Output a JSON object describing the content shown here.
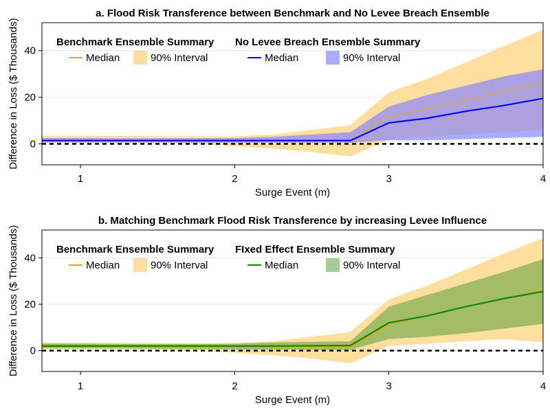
{
  "chart_data": [
    {
      "type": "line",
      "title": "a. Flood Risk Transference between Benchmark and No Levee Breach Ensemble",
      "xlabel": "Surge Event (m)",
      "ylabel": "Difference in Loss ($ Thousands)",
      "xlim": [
        0.75,
        4
      ],
      "ylim": [
        -9,
        52
      ],
      "xticks": [
        1,
        2,
        3,
        4
      ],
      "yticks": [
        0,
        20,
        40
      ],
      "grid": true,
      "reference_line_y": 0,
      "x": [
        0.75,
        1,
        1.25,
        1.5,
        1.75,
        2,
        2.25,
        2.5,
        2.75,
        3,
        3.25,
        3.5,
        3.75,
        4
      ],
      "legend": [
        {
          "title": "Benchmark Ensemble Summary",
          "median_label": "Median",
          "interval_label": "90% Interval"
        },
        {
          "title": "No Levee Breach Ensemble Summary",
          "median_label": "Median",
          "interval_label": "90% Interval"
        }
      ],
      "series": [
        {
          "line_color": "#E5A51B",
          "band_color": "#FFDFA0",
          "median": [
            1.6,
            1.6,
            1.6,
            1.6,
            1.5,
            1.4,
            1.4,
            1.5,
            1.5,
            11.5,
            15.0,
            19.0,
            22.5,
            26.0
          ],
          "lower": [
            0.5,
            0.5,
            0.5,
            0.4,
            0.0,
            -1.0,
            -2.0,
            -3.5,
            -5.5,
            2.0,
            3.0,
            4.0,
            5.0,
            6.0
          ],
          "upper": [
            3.5,
            3.5,
            3.4,
            3.3,
            3.2,
            3.2,
            4.0,
            6.0,
            8.0,
            22.0,
            28.0,
            35.0,
            42.0,
            49.0
          ]
        },
        {
          "line_color": "#0000FF",
          "band_color": "#8080FF",
          "band_opacity": 0.65,
          "median": [
            1.4,
            1.4,
            1.4,
            1.4,
            1.4,
            1.4,
            1.4,
            1.4,
            1.4,
            9.0,
            11.0,
            14.0,
            16.5,
            19.5
          ],
          "lower": [
            0.6,
            0.6,
            0.6,
            0.6,
            0.5,
            0.5,
            0.5,
            0.5,
            0.5,
            1.5,
            1.5,
            2.0,
            2.5,
            3.0
          ],
          "upper": [
            2.5,
            2.5,
            2.4,
            2.4,
            2.4,
            2.5,
            3.0,
            4.0,
            5.0,
            16.0,
            21.0,
            25.0,
            29.0,
            32.0
          ]
        }
      ]
    },
    {
      "type": "line",
      "title": "b. Matching Benchmark Flood Risk Transference by increasing Levee Influence",
      "xlabel": "Surge Event (m)",
      "ylabel": "Difference in Loss ($ Thousands)",
      "xlim": [
        0.75,
        4
      ],
      "ylim": [
        -9,
        52
      ],
      "xticks": [
        1,
        2,
        3,
        4
      ],
      "yticks": [
        0,
        20,
        40
      ],
      "grid": true,
      "reference_line_y": 0,
      "x": [
        0.75,
        1,
        1.25,
        1.5,
        1.75,
        2,
        2.25,
        2.5,
        2.75,
        3,
        3.25,
        3.5,
        3.75,
        4
      ],
      "legend": [
        {
          "title": "Benchmark Ensemble Summary",
          "median_label": "Median",
          "interval_label": "90% Interval"
        },
        {
          "title": "FIxed Effect Ensemble Summary",
          "median_label": "Median",
          "interval_label": "90% Interval"
        }
      ],
      "series": [
        {
          "line_color": "#E5A51B",
          "band_color": "#FFDFA0",
          "median": [
            1.6,
            1.6,
            1.6,
            1.6,
            1.5,
            1.4,
            1.4,
            1.5,
            1.5,
            11.5,
            15.0,
            19.0,
            22.5,
            26.0
          ],
          "lower": [
            0.5,
            0.5,
            0.5,
            0.4,
            0.0,
            -1.0,
            -2.0,
            -3.5,
            -5.5,
            2.0,
            3.0,
            4.0,
            5.0,
            3.5
          ],
          "upper": [
            3.5,
            3.5,
            3.4,
            3.3,
            3.2,
            3.2,
            4.0,
            6.0,
            8.0,
            22.0,
            28.0,
            35.0,
            42.0,
            48.5
          ]
        },
        {
          "line_color": "#0A8A0A",
          "band_color": "#4A9A2A",
          "band_opacity": 0.5,
          "median": [
            2.0,
            2.0,
            2.0,
            2.0,
            2.0,
            2.0,
            2.0,
            2.1,
            2.2,
            12.0,
            15.0,
            19.0,
            22.5,
            25.5
          ],
          "lower": [
            1.0,
            1.0,
            1.0,
            0.8,
            0.7,
            0.6,
            0.5,
            0.4,
            0.3,
            5.0,
            6.0,
            7.5,
            9.5,
            11.5
          ],
          "upper": [
            3.0,
            3.0,
            2.9,
            2.8,
            2.8,
            3.0,
            3.5,
            3.8,
            4.0,
            19.0,
            24.0,
            29.0,
            34.0,
            39.5
          ]
        }
      ]
    }
  ]
}
